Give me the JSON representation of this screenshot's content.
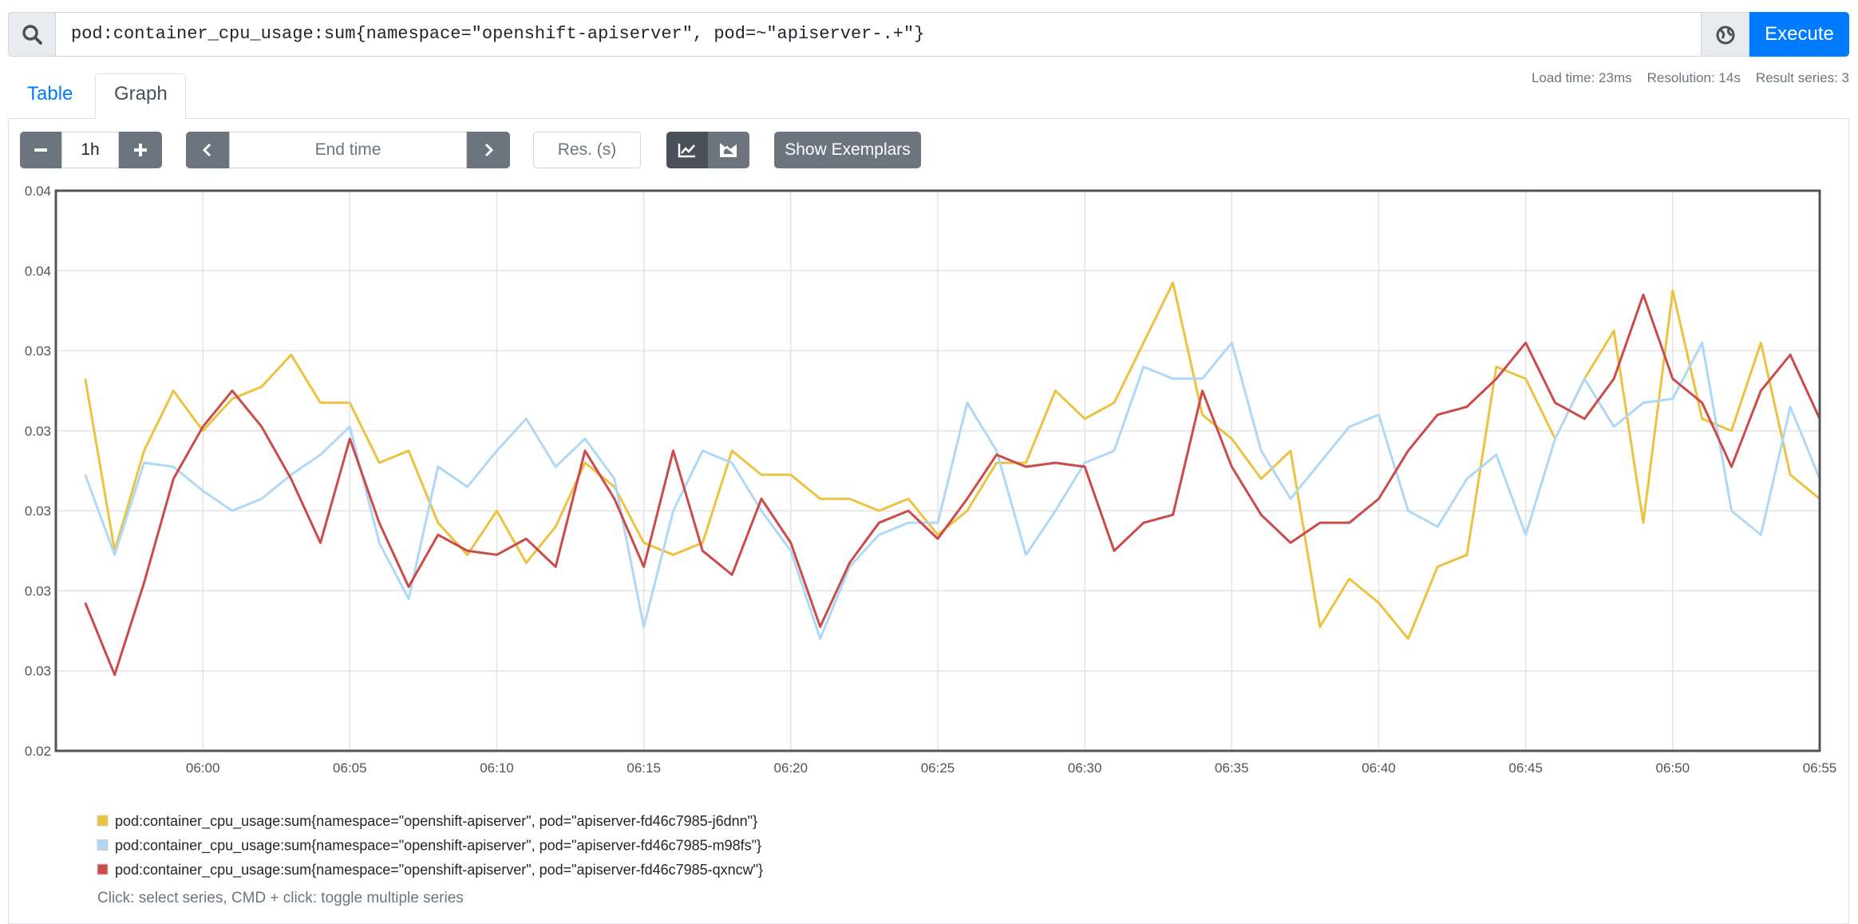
{
  "query": "pod:container_cpu_usage:sum{namespace=\"openshift-apiserver\", pod=~\"apiserver-.+\"}",
  "execute": "Execute",
  "tabs": [
    "Table",
    "Graph"
  ],
  "stats": [
    "Load time: 23ms",
    "Resolution: 14s",
    "Result series: 3"
  ],
  "controls": {
    "range": "1h",
    "end_time": "End time",
    "resolution": "Res. (s)",
    "exemplars": "Show Exemplars"
  },
  "hint": "Click: select series, CMD + click: toggle multiple series",
  "chart_data": {
    "type": "line",
    "x": [
      "05:56",
      "05:57",
      "05:58",
      "05:59",
      "06:00",
      "06:01",
      "06:02",
      "06:03",
      "06:04",
      "06:05",
      "06:06",
      "06:07",
      "06:08",
      "06:09",
      "06:10",
      "06:11",
      "06:12",
      "06:13",
      "06:14",
      "06:15",
      "06:16",
      "06:17",
      "06:18",
      "06:19",
      "06:20",
      "06:21",
      "06:22",
      "06:23",
      "06:24",
      "06:25",
      "06:26",
      "06:27",
      "06:28",
      "06:29",
      "06:30",
      "06:31",
      "06:32",
      "06:33",
      "06:34",
      "06:35",
      "06:36",
      "06:37",
      "06:38",
      "06:39",
      "06:40",
      "06:41",
      "06:42",
      "06:43",
      "06:44",
      "06:45",
      "06:46",
      "06:47",
      "06:48",
      "06:49",
      "06:50",
      "06:51",
      "06:52",
      "06:53",
      "06:54",
      "06:55"
    ],
    "series": [
      {
        "name": "pod:container_cpu_usage:sum{namespace=\"openshift-apiserver\", pod=\"apiserver-fd46c7985-j6dnn\"}",
        "color": "#edc240",
        "values": [
          0.0338,
          0.0295,
          0.032,
          0.0335,
          0.0325,
          0.0333,
          0.0336,
          0.0344,
          0.0332,
          0.0332,
          0.0317,
          0.032,
          0.0302,
          0.0294,
          0.0305,
          0.0292,
          0.0301,
          0.0317,
          0.0311,
          0.0297,
          0.0294,
          0.0297,
          0.032,
          0.0314,
          0.0314,
          0.0308,
          0.0308,
          0.0305,
          0.0308,
          0.0299,
          0.0305,
          0.0317,
          0.0317,
          0.0335,
          0.0328,
          0.0332,
          0.0347,
          0.0362,
          0.0329,
          0.0323,
          0.0313,
          0.032,
          0.0276,
          0.0288,
          0.0282,
          0.0273,
          0.0291,
          0.0294,
          0.0341,
          0.0338,
          0.0323,
          0.0338,
          0.035,
          0.0302,
          0.036,
          0.0328,
          0.0325,
          0.0347,
          0.0314,
          0.0308
        ]
      },
      {
        "name": "pod:container_cpu_usage:sum{namespace=\"openshift-apiserver\", pod=\"apiserver-fd46c7985-m98fs\"}",
        "color": "#afd8f8",
        "values": [
          0.0314,
          0.0294,
          0.0317,
          0.0316,
          0.031,
          0.0305,
          0.0308,
          0.0314,
          0.0319,
          0.0326,
          0.0297,
          0.0283,
          0.0316,
          0.0311,
          0.032,
          0.0328,
          0.0316,
          0.0323,
          0.0313,
          0.0276,
          0.0305,
          0.032,
          0.0317,
          0.0305,
          0.0295,
          0.0273,
          0.0291,
          0.0299,
          0.0302,
          0.0302,
          0.0332,
          0.032,
          0.0294,
          0.0305,
          0.0317,
          0.032,
          0.0341,
          0.0338,
          0.0338,
          0.0347,
          0.032,
          0.0308,
          0.0317,
          0.0326,
          0.0329,
          0.0305,
          0.0301,
          0.0313,
          0.0319,
          0.0299,
          0.0323,
          0.0338,
          0.0326,
          0.0332,
          0.0333,
          0.0347,
          0.0305,
          0.0299,
          0.0331,
          0.0313
        ]
      },
      {
        "name": "pod:container_cpu_usage:sum{namespace=\"openshift-apiserver\", pod=\"apiserver-fd46c7985-qxncw\"}",
        "color": "#cb4b4b",
        "values": [
          0.0282,
          0.0264,
          0.0287,
          0.0313,
          0.0326,
          0.0335,
          0.0326,
          0.0313,
          0.0297,
          0.0323,
          0.0302,
          0.0286,
          0.0299,
          0.0295,
          0.0294,
          0.0298,
          0.0291,
          0.032,
          0.0308,
          0.0291,
          0.032,
          0.0295,
          0.0289,
          0.0308,
          0.0297,
          0.0276,
          0.0292,
          0.0302,
          0.0305,
          0.0298,
          0.0308,
          0.0319,
          0.0316,
          0.0317,
          0.0316,
          0.0295,
          0.0302,
          0.0304,
          0.0335,
          0.0316,
          0.0304,
          0.0297,
          0.0302,
          0.0302,
          0.0308,
          0.032,
          0.0329,
          0.0331,
          0.0338,
          0.0347,
          0.0332,
          0.0328,
          0.0338,
          0.0359,
          0.0338,
          0.0332,
          0.0316,
          0.0335,
          0.0344,
          0.0328
        ]
      }
    ],
    "xlim": [
      "05:55",
      "06:55"
    ],
    "xticks": [
      "06:00",
      "06:05",
      "06:10",
      "06:15",
      "06:20",
      "06:25",
      "06:30",
      "06:35",
      "06:40",
      "06:45",
      "06:50",
      "06:55"
    ],
    "ylim": [
      0.0245,
      0.0385
    ],
    "yticks": [
      {
        "value": 0.0245,
        "label": "0.02"
      },
      {
        "value": 0.0265,
        "label": "0.03"
      },
      {
        "value": 0.0285,
        "label": "0.03"
      },
      {
        "value": 0.0305,
        "label": "0.03"
      },
      {
        "value": 0.0325,
        "label": "0.03"
      },
      {
        "value": 0.0345,
        "label": "0.03"
      },
      {
        "value": 0.0365,
        "label": "0.04"
      },
      {
        "value": 0.0385,
        "label": "0.04"
      }
    ],
    "grid": true
  }
}
